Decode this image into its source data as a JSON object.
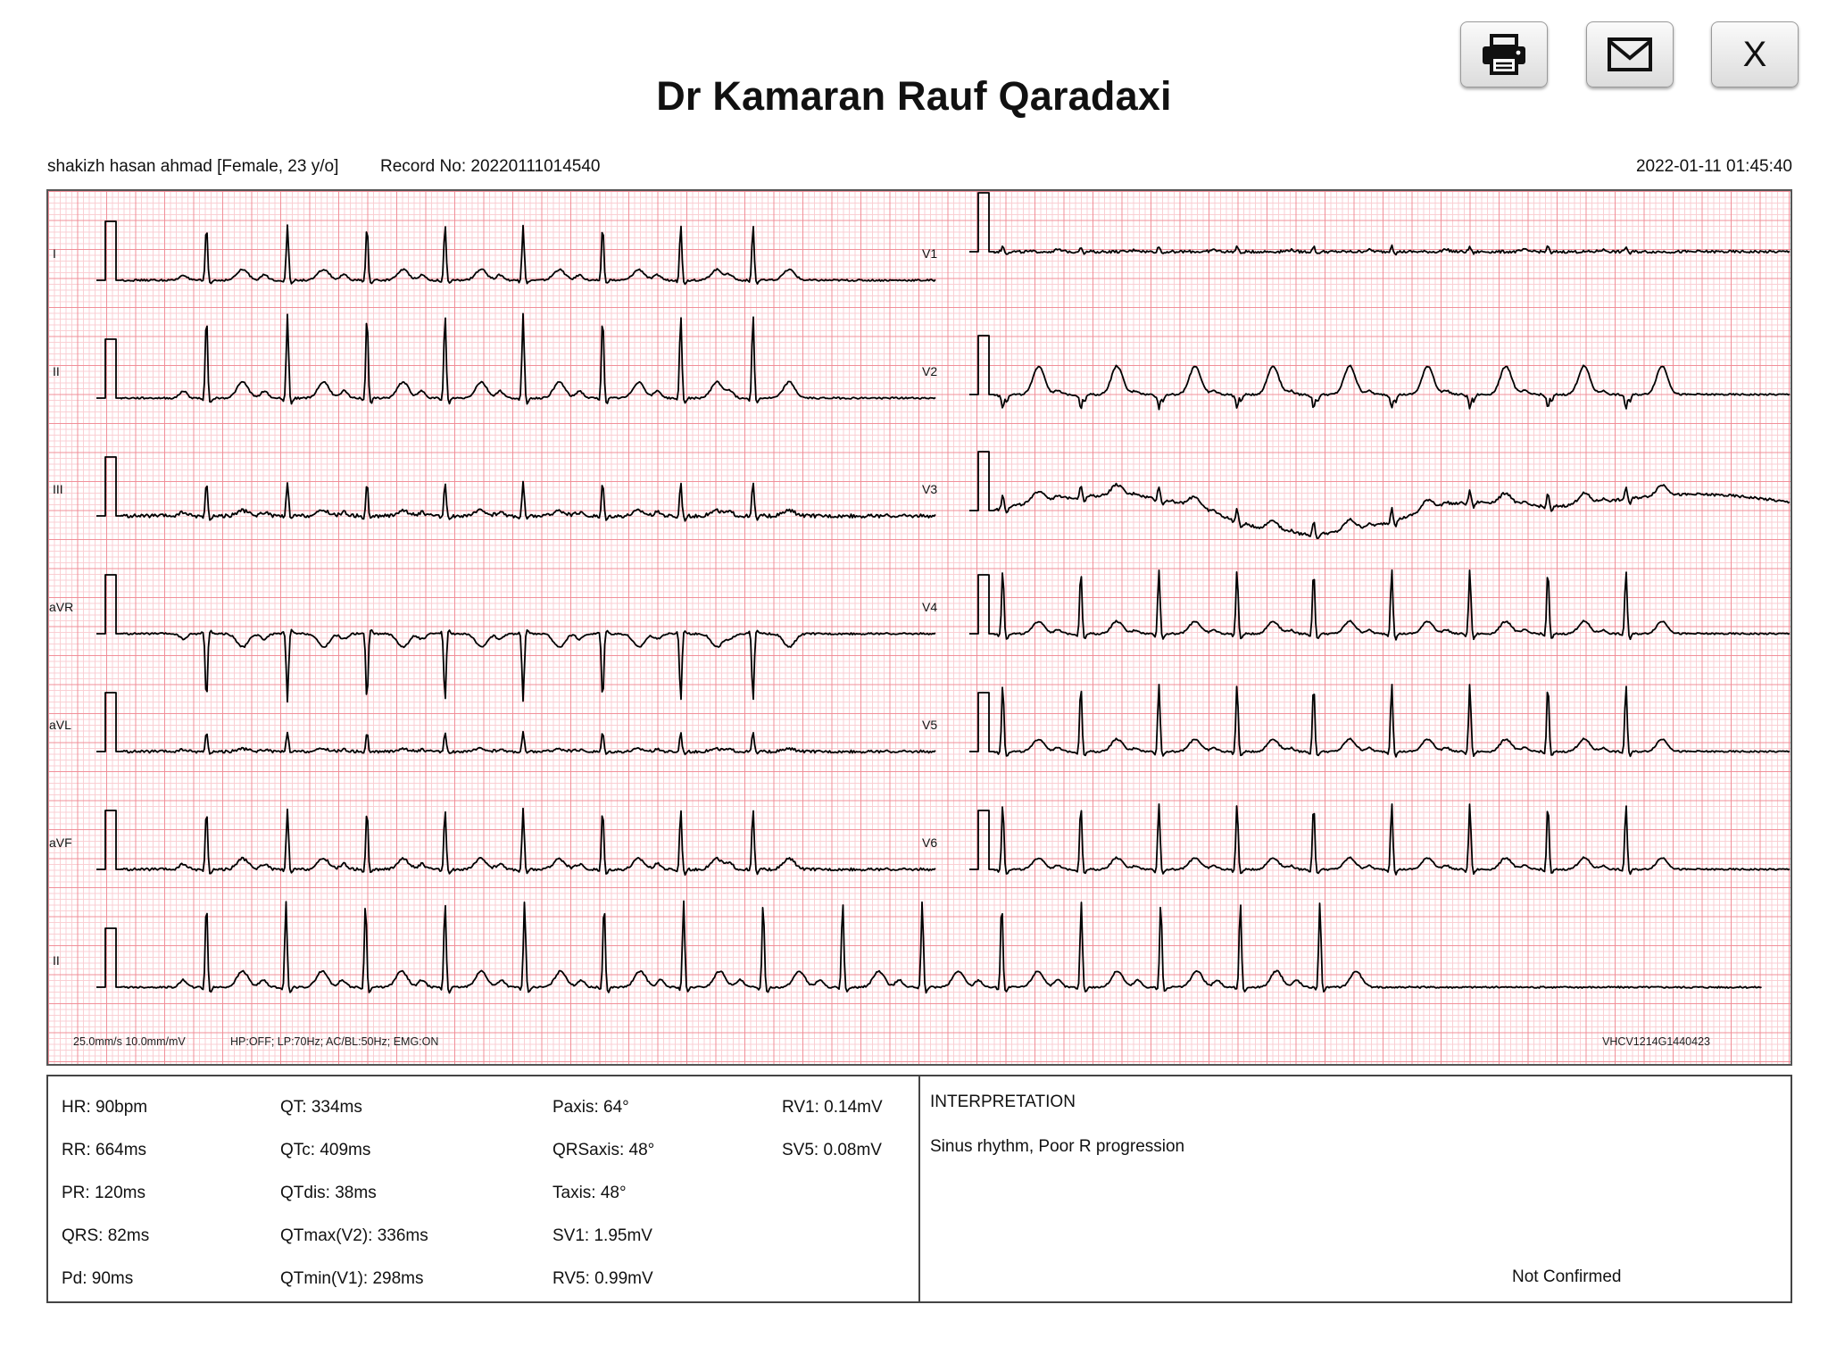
{
  "header": {
    "title": "Dr Kamaran Rauf Qaradaxi",
    "buttons": {
      "print_icon": "printer-icon",
      "email_icon": "envelope-icon",
      "close_label": "X"
    }
  },
  "patient": {
    "name_info": "shakizh hasan ahmad [Female, 23 y/o]",
    "record": "Record No: 20220111014540",
    "datetime": "2022-01-11 01:45:40"
  },
  "ecg": {
    "leads_left": [
      "I",
      "II",
      "III",
      "aVR",
      "aVL",
      "aVF"
    ],
    "leads_right": [
      "V1",
      "V2",
      "V3",
      "V4",
      "V5",
      "V6"
    ],
    "rhythm_lead": "II",
    "settings": "25.0mm/s  10.0mm/mV",
    "filters": "HP:OFF; LP:70Hz; AC/BL:50Hz; EMG:ON",
    "device_id": "VHCV1214G1440423",
    "grid_color": "#f08c96",
    "trace_color": "#000000"
  },
  "measurements": {
    "col1": [
      "HR: 90bpm",
      "RR: 664ms",
      "PR: 120ms",
      "QRS: 82ms",
      "Pd: 90ms"
    ],
    "col2": [
      "QT: 334ms",
      "QTc: 409ms",
      "QTdis: 38ms",
      "QTmax(V2): 336ms",
      "QTmin(V1): 298ms"
    ],
    "col3": [
      "Paxis: 64°",
      "QRSaxis: 48°",
      "Taxis: 48°",
      "SV1: 1.95mV",
      "RV5: 0.99mV"
    ],
    "col4": [
      "RV1: 0.14mV",
      "SV5: 0.08mV"
    ]
  },
  "interpretation": {
    "heading": "INTERPRETATION",
    "text": "Sinus rhythm, Poor R progression",
    "status": "Not Confirmed"
  }
}
